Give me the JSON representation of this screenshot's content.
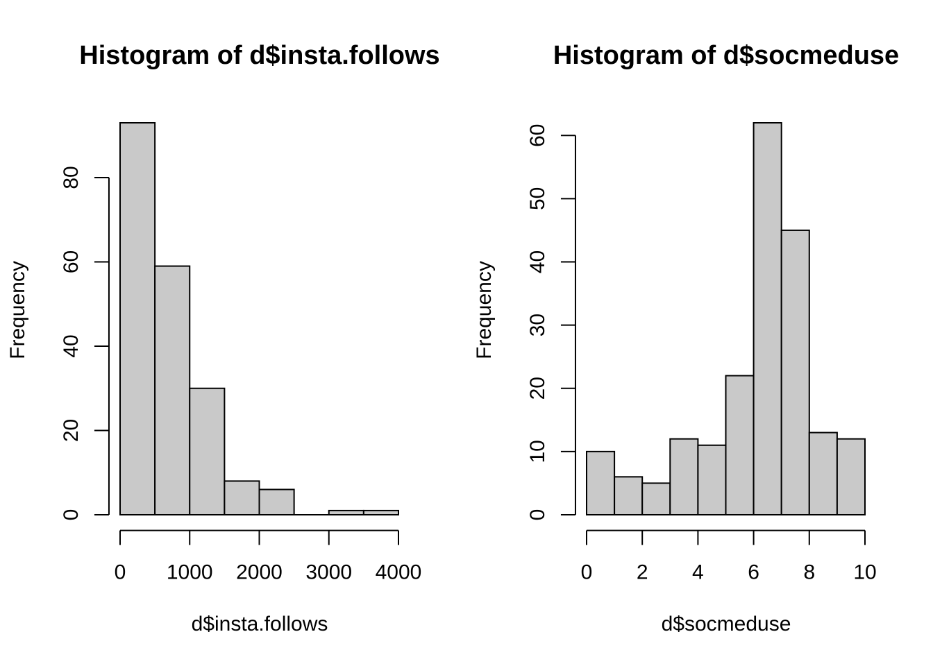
{
  "figure": {
    "background": "#ffffff",
    "text_color": "#000000",
    "bar_fill": "#c9c9c9",
    "bar_stroke": "#000000",
    "axis_color": "#000000"
  },
  "chart_data": [
    {
      "type": "bar",
      "subtype": "histogram",
      "title": "Histogram of d$insta.follows",
      "xlabel": "d$insta.follows",
      "ylabel": "Frequency",
      "bin_edges": [
        0,
        500,
        1000,
        1500,
        2000,
        2500,
        3000,
        3500,
        4000
      ],
      "counts": [
        93,
        59,
        30,
        8,
        6,
        0,
        1,
        1
      ],
      "xticks": [
        0,
        1000,
        2000,
        3000,
        4000
      ],
      "yticks": [
        0,
        20,
        40,
        60,
        80
      ],
      "xlim": [
        0,
        4000
      ],
      "ylim": [
        0,
        93
      ],
      "grid": false,
      "legend": "none"
    },
    {
      "type": "bar",
      "subtype": "histogram",
      "title": "Histogram of d$socmeduse",
      "xlabel": "d$socmeduse",
      "ylabel": "Frequency",
      "bin_edges": [
        0,
        1,
        2,
        3,
        4,
        5,
        6,
        7,
        8,
        9,
        10
      ],
      "counts": [
        10,
        6,
        5,
        12,
        11,
        22,
        62,
        45,
        13,
        12
      ],
      "xticks": [
        0,
        2,
        4,
        6,
        8,
        10
      ],
      "yticks": [
        0,
        10,
        20,
        30,
        40,
        50,
        60
      ],
      "xlim": [
        0,
        10
      ],
      "ylim": [
        0,
        62
      ],
      "grid": false,
      "legend": "none"
    }
  ]
}
